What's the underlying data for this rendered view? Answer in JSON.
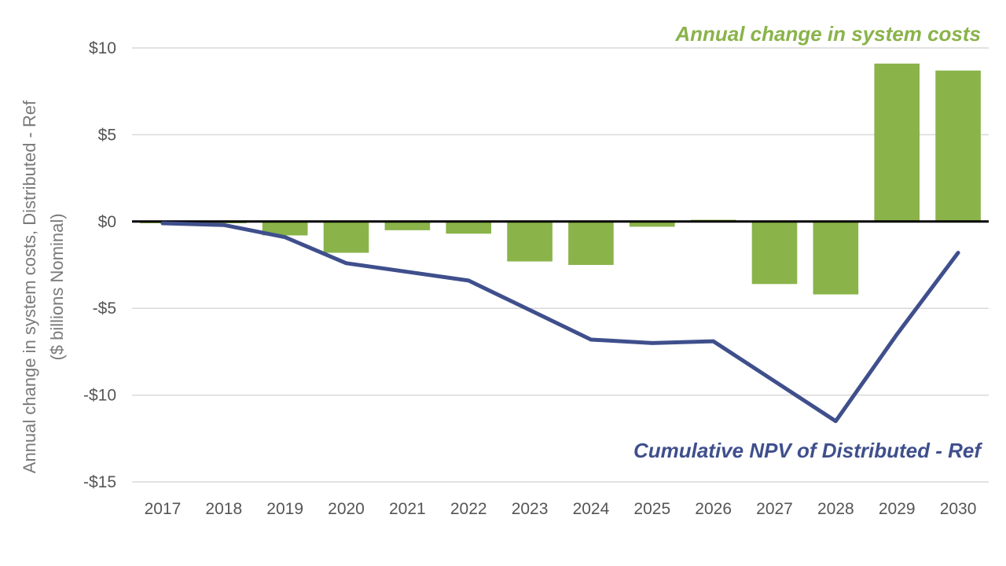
{
  "chart_data": {
    "type": "bar",
    "categories": [
      "2017",
      "2018",
      "2019",
      "2020",
      "2021",
      "2022",
      "2023",
      "2024",
      "2025",
      "2026",
      "2027",
      "2028",
      "2029",
      "2030"
    ],
    "series": [
      {
        "name": "Annual change in system costs",
        "type": "bar",
        "color": "#8ab34a",
        "values": [
          -0.1,
          -0.1,
          -0.8,
          -1.8,
          -0.5,
          -0.7,
          -2.3,
          -2.5,
          -0.3,
          0.1,
          -3.6,
          -4.2,
          9.1,
          8.7
        ]
      },
      {
        "name": "Cumulative NPV of Distributed - Ref",
        "type": "line",
        "color": "#3f4f8c",
        "values": [
          -0.1,
          -0.2,
          -0.9,
          -2.4,
          -2.9,
          -3.4,
          -5.1,
          -6.8,
          -7.0,
          -6.9,
          -9.2,
          -11.5,
          -6.5,
          -1.8
        ]
      }
    ],
    "ylabel_line1": "Annual change in system costs, Distributed - Ref",
    "ylabel_line2": "($ billions Nominal)",
    "ylim": [
      -15,
      10
    ],
    "yticks": [
      10,
      5,
      0,
      -5,
      -10,
      -15
    ],
    "ytick_labels": [
      "$10",
      "$5",
      "$0",
      "-$5",
      "-$10",
      "-$15"
    ],
    "grid": true,
    "legend": "none"
  }
}
